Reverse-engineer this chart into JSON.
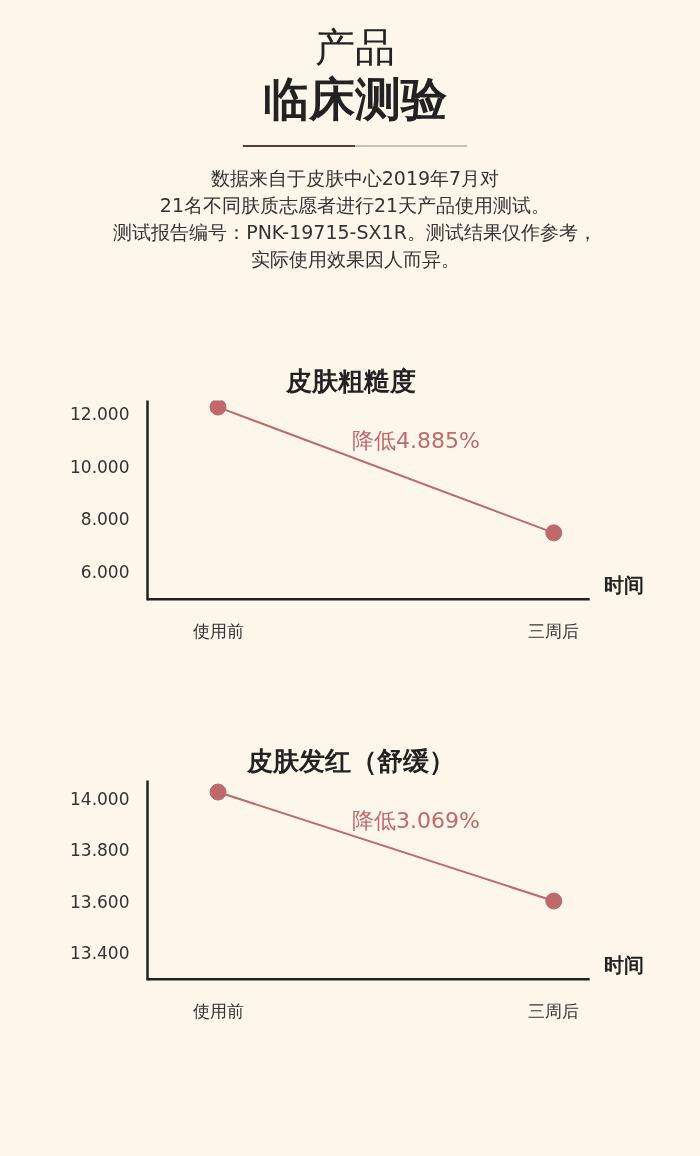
{
  "chart_data": [
    {
      "type": "line",
      "title": "皮肤粗糙度",
      "annotations": [
        "产品",
        "临床测验",
        "数据来自于皮肤中心2019年7月对",
        "21名不同肤质志愿者进行21天产品使用测试。",
        "测试报告编号：PNK-19715-SX1R。测试结果仅作参考，",
        "实际使用效果因人而异。",
        "降低4.885%"
      ],
      "xlabel": "时间",
      "categories": [
        "使用前",
        "三周后"
      ],
      "series": [
        {
          "color": "#c0696a",
          "values": [
            12.25,
            7.47
          ]
        }
      ],
      "ylim": [
        4.9,
        12.5
      ],
      "yticks": [
        {
          "value": 6,
          "label": "6.000"
        },
        {
          "value": 8,
          "label": "8.000"
        },
        {
          "value": 10,
          "label": "10.000"
        },
        {
          "value": 12,
          "label": "12.000"
        }
      ],
      "marker": "circle",
      "line_style": "solid",
      "grid": false
    },
    {
      "type": "line",
      "title": "皮肤发红（舒缓）",
      "annotations": [
        "降低3.069%"
      ],
      "xlabel": "时间",
      "categories": [
        "使用前",
        "三周后"
      ],
      "series": [
        {
          "color": "#c0696a",
          "values": [
            14.025,
            13.6
          ]
        }
      ],
      "ylim": [
        13.29,
        14.07
      ],
      "yticks": [
        {
          "value": 13.4,
          "label": "13.400"
        },
        {
          "value": 13.6,
          "label": "13.600"
        },
        {
          "value": 13.8,
          "label": "13.800"
        },
        {
          "value": 14.0,
          "label": "14.000"
        }
      ],
      "marker": "circle",
      "line_style": "solid",
      "grid": false
    }
  ]
}
